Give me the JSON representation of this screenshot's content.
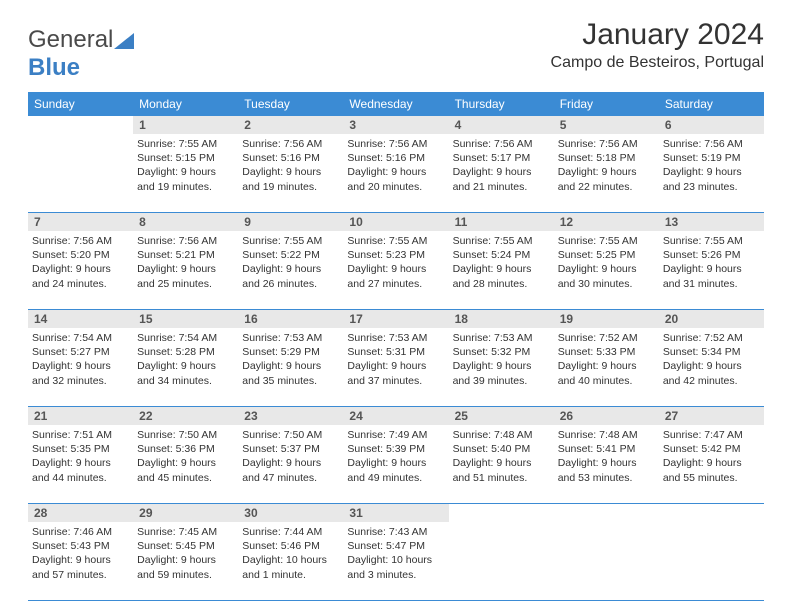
{
  "brand": {
    "part1": "General",
    "part2": "Blue"
  },
  "title": "January 2024",
  "location": "Campo de Besteiros, Portugal",
  "colors": {
    "header_bg": "#3b8bd4",
    "header_text": "#ffffff",
    "daynum_bg": "#e8e8e8",
    "border": "#3b8bd4",
    "text": "#333333",
    "logo_blue": "#3b7fc4"
  },
  "weekdays": [
    "Sunday",
    "Monday",
    "Tuesday",
    "Wednesday",
    "Thursday",
    "Friday",
    "Saturday"
  ],
  "weeks": [
    {
      "nums": [
        "",
        "1",
        "2",
        "3",
        "4",
        "5",
        "6"
      ],
      "cells": [
        null,
        {
          "sunrise": "Sunrise: 7:55 AM",
          "sunset": "Sunset: 5:15 PM",
          "daylight": "Daylight: 9 hours and 19 minutes."
        },
        {
          "sunrise": "Sunrise: 7:56 AM",
          "sunset": "Sunset: 5:16 PM",
          "daylight": "Daylight: 9 hours and 19 minutes."
        },
        {
          "sunrise": "Sunrise: 7:56 AM",
          "sunset": "Sunset: 5:16 PM",
          "daylight": "Daylight: 9 hours and 20 minutes."
        },
        {
          "sunrise": "Sunrise: 7:56 AM",
          "sunset": "Sunset: 5:17 PM",
          "daylight": "Daylight: 9 hours and 21 minutes."
        },
        {
          "sunrise": "Sunrise: 7:56 AM",
          "sunset": "Sunset: 5:18 PM",
          "daylight": "Daylight: 9 hours and 22 minutes."
        },
        {
          "sunrise": "Sunrise: 7:56 AM",
          "sunset": "Sunset: 5:19 PM",
          "daylight": "Daylight: 9 hours and 23 minutes."
        }
      ]
    },
    {
      "nums": [
        "7",
        "8",
        "9",
        "10",
        "11",
        "12",
        "13"
      ],
      "cells": [
        {
          "sunrise": "Sunrise: 7:56 AM",
          "sunset": "Sunset: 5:20 PM",
          "daylight": "Daylight: 9 hours and 24 minutes."
        },
        {
          "sunrise": "Sunrise: 7:56 AM",
          "sunset": "Sunset: 5:21 PM",
          "daylight": "Daylight: 9 hours and 25 minutes."
        },
        {
          "sunrise": "Sunrise: 7:55 AM",
          "sunset": "Sunset: 5:22 PM",
          "daylight": "Daylight: 9 hours and 26 minutes."
        },
        {
          "sunrise": "Sunrise: 7:55 AM",
          "sunset": "Sunset: 5:23 PM",
          "daylight": "Daylight: 9 hours and 27 minutes."
        },
        {
          "sunrise": "Sunrise: 7:55 AM",
          "sunset": "Sunset: 5:24 PM",
          "daylight": "Daylight: 9 hours and 28 minutes."
        },
        {
          "sunrise": "Sunrise: 7:55 AM",
          "sunset": "Sunset: 5:25 PM",
          "daylight": "Daylight: 9 hours and 30 minutes."
        },
        {
          "sunrise": "Sunrise: 7:55 AM",
          "sunset": "Sunset: 5:26 PM",
          "daylight": "Daylight: 9 hours and 31 minutes."
        }
      ]
    },
    {
      "nums": [
        "14",
        "15",
        "16",
        "17",
        "18",
        "19",
        "20"
      ],
      "cells": [
        {
          "sunrise": "Sunrise: 7:54 AM",
          "sunset": "Sunset: 5:27 PM",
          "daylight": "Daylight: 9 hours and 32 minutes."
        },
        {
          "sunrise": "Sunrise: 7:54 AM",
          "sunset": "Sunset: 5:28 PM",
          "daylight": "Daylight: 9 hours and 34 minutes."
        },
        {
          "sunrise": "Sunrise: 7:53 AM",
          "sunset": "Sunset: 5:29 PM",
          "daylight": "Daylight: 9 hours and 35 minutes."
        },
        {
          "sunrise": "Sunrise: 7:53 AM",
          "sunset": "Sunset: 5:31 PM",
          "daylight": "Daylight: 9 hours and 37 minutes."
        },
        {
          "sunrise": "Sunrise: 7:53 AM",
          "sunset": "Sunset: 5:32 PM",
          "daylight": "Daylight: 9 hours and 39 minutes."
        },
        {
          "sunrise": "Sunrise: 7:52 AM",
          "sunset": "Sunset: 5:33 PM",
          "daylight": "Daylight: 9 hours and 40 minutes."
        },
        {
          "sunrise": "Sunrise: 7:52 AM",
          "sunset": "Sunset: 5:34 PM",
          "daylight": "Daylight: 9 hours and 42 minutes."
        }
      ]
    },
    {
      "nums": [
        "21",
        "22",
        "23",
        "24",
        "25",
        "26",
        "27"
      ],
      "cells": [
        {
          "sunrise": "Sunrise: 7:51 AM",
          "sunset": "Sunset: 5:35 PM",
          "daylight": "Daylight: 9 hours and 44 minutes."
        },
        {
          "sunrise": "Sunrise: 7:50 AM",
          "sunset": "Sunset: 5:36 PM",
          "daylight": "Daylight: 9 hours and 45 minutes."
        },
        {
          "sunrise": "Sunrise: 7:50 AM",
          "sunset": "Sunset: 5:37 PM",
          "daylight": "Daylight: 9 hours and 47 minutes."
        },
        {
          "sunrise": "Sunrise: 7:49 AM",
          "sunset": "Sunset: 5:39 PM",
          "daylight": "Daylight: 9 hours and 49 minutes."
        },
        {
          "sunrise": "Sunrise: 7:48 AM",
          "sunset": "Sunset: 5:40 PM",
          "daylight": "Daylight: 9 hours and 51 minutes."
        },
        {
          "sunrise": "Sunrise: 7:48 AM",
          "sunset": "Sunset: 5:41 PM",
          "daylight": "Daylight: 9 hours and 53 minutes."
        },
        {
          "sunrise": "Sunrise: 7:47 AM",
          "sunset": "Sunset: 5:42 PM",
          "daylight": "Daylight: 9 hours and 55 minutes."
        }
      ]
    },
    {
      "nums": [
        "28",
        "29",
        "30",
        "31",
        "",
        "",
        ""
      ],
      "cells": [
        {
          "sunrise": "Sunrise: 7:46 AM",
          "sunset": "Sunset: 5:43 PM",
          "daylight": "Daylight: 9 hours and 57 minutes."
        },
        {
          "sunrise": "Sunrise: 7:45 AM",
          "sunset": "Sunset: 5:45 PM",
          "daylight": "Daylight: 9 hours and 59 minutes."
        },
        {
          "sunrise": "Sunrise: 7:44 AM",
          "sunset": "Sunset: 5:46 PM",
          "daylight": "Daylight: 10 hours and 1 minute."
        },
        {
          "sunrise": "Sunrise: 7:43 AM",
          "sunset": "Sunset: 5:47 PM",
          "daylight": "Daylight: 10 hours and 3 minutes."
        },
        null,
        null,
        null
      ]
    }
  ]
}
